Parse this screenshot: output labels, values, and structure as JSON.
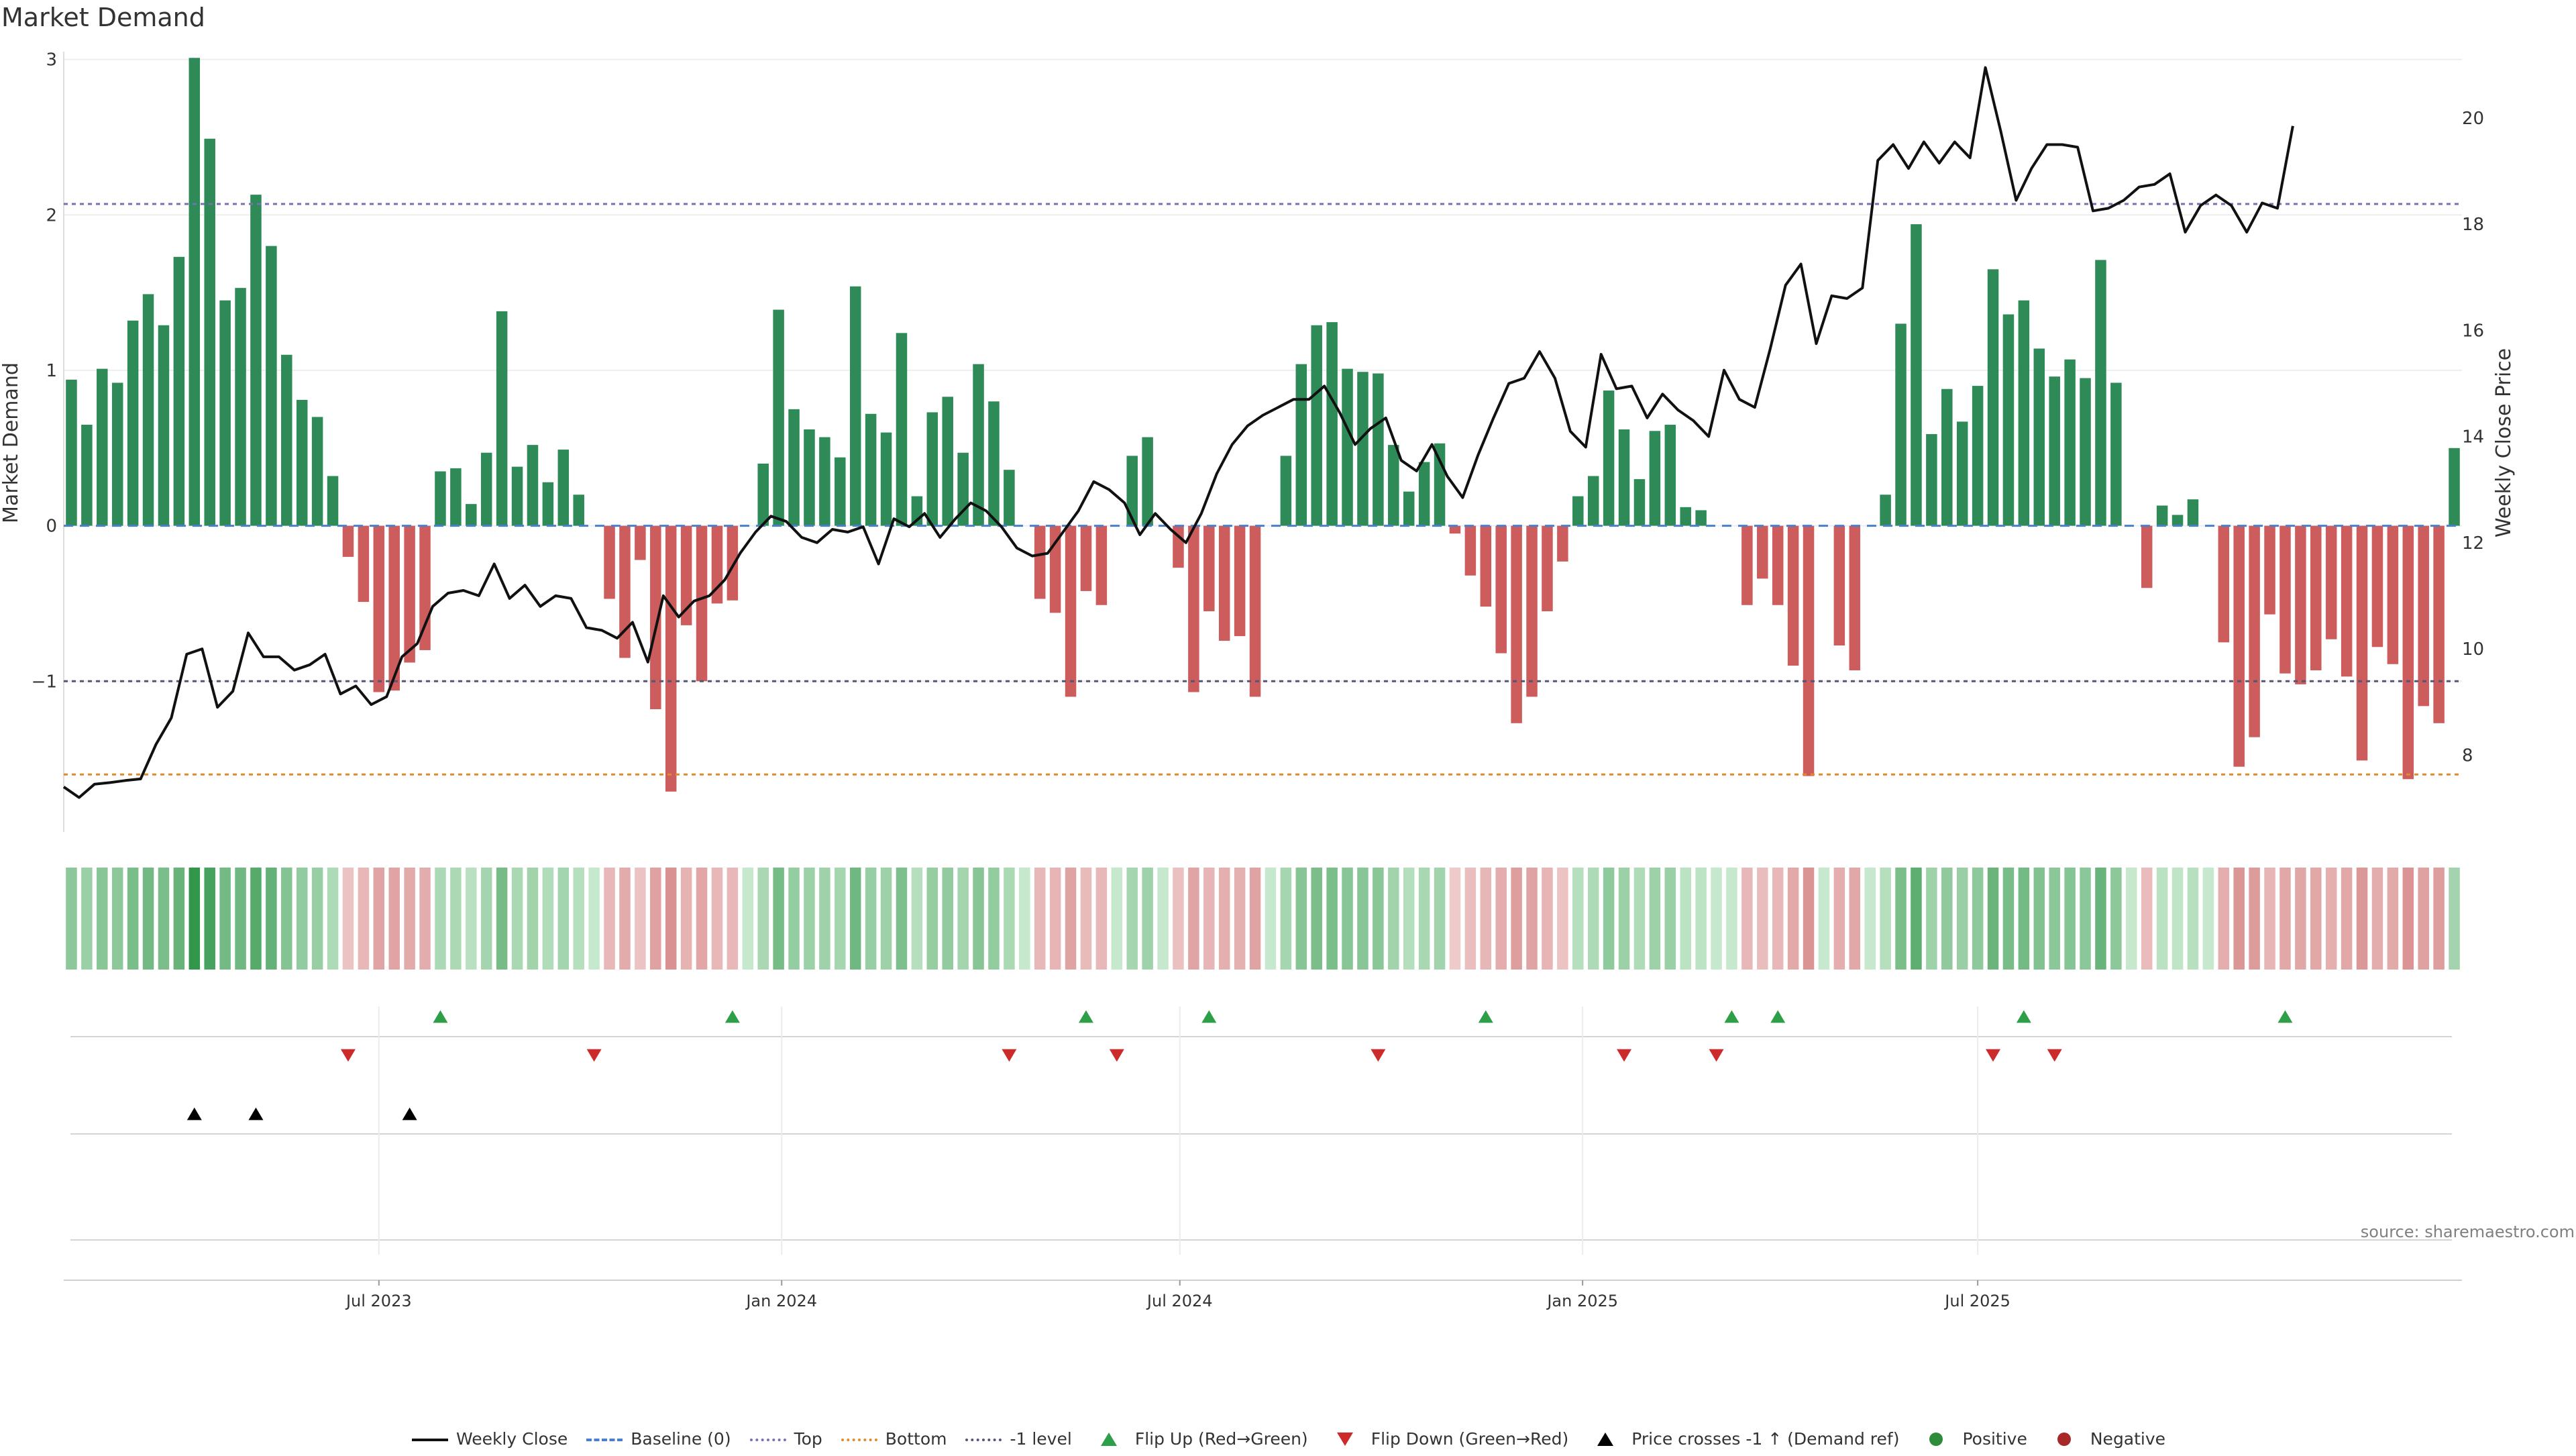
{
  "chart_data": {
    "type": "bar",
    "title": "Market Demand",
    "source": "source: sharemaestro.com",
    "ylabel": "Market Demand",
    "y2label": "Weekly Close Price",
    "ylim": [
      -1.97,
      3.05
    ],
    "y2lim": [
      6.55,
      21.25
    ],
    "yticks": [
      {
        "v": 3,
        "label": "3"
      },
      {
        "v": 2,
        "label": "2"
      },
      {
        "v": 1,
        "label": "1"
      },
      {
        "v": 0,
        "label": "0"
      },
      {
        "v": -1,
        "label": "−1"
      }
    ],
    "y2ticks": [
      {
        "v": 20,
        "label": "20"
      },
      {
        "v": 18,
        "label": "18"
      },
      {
        "v": 16,
        "label": "16"
      },
      {
        "v": 14,
        "label": "14"
      },
      {
        "v": 12,
        "label": "12"
      },
      {
        "v": 10,
        "label": "10"
      },
      {
        "v": 8,
        "label": "8"
      }
    ],
    "date_range_weeks": 145,
    "xticks": [
      {
        "week": 20.5,
        "label": "Jul 2023"
      },
      {
        "week": 46.7,
        "label": "Jan 2024"
      },
      {
        "week": 72.6,
        "label": "Jul 2024"
      },
      {
        "week": 98.8,
        "label": "Jan 2025"
      },
      {
        "week": 124.5,
        "label": "Jul 2025"
      }
    ],
    "levels": {
      "top": 2.07,
      "bottom": -1.6,
      "minus_one": -1.0
    },
    "series": [
      {
        "name": "Market Demand",
        "values": [
          0.94,
          0.65,
          1.01,
          0.92,
          1.32,
          1.49,
          1.29,
          1.73,
          3.01,
          2.49,
          1.45,
          1.53,
          2.13,
          1.8,
          1.1,
          0.81,
          0.7,
          0.32,
          -0.2,
          -0.49,
          -1.07,
          -1.06,
          -0.88,
          -0.8,
          0.35,
          0.37,
          0.14,
          0.47,
          1.38,
          0.38,
          0.52,
          0.28,
          0.49,
          0.2,
          0,
          -0.47,
          -0.85,
          -0.22,
          -1.18,
          -1.71,
          -0.64,
          -1.0,
          -0.5,
          -0.48,
          0,
          0.4,
          1.39,
          0.75,
          0.62,
          0.57,
          0.44,
          1.54,
          0.72,
          0.6,
          1.24,
          0.19,
          0.73,
          0.83,
          0.47,
          1.04,
          0.8,
          0.36,
          0,
          -0.47,
          -0.56,
          -1.1,
          -0.42,
          -0.51,
          0,
          0.45,
          0.57,
          0,
          -0.27,
          -1.07,
          -0.55,
          -0.74,
          -0.71,
          -1.1,
          0,
          0.45,
          1.04,
          1.29,
          1.31,
          1.01,
          0.99,
          0.98,
          0.52,
          0.22,
          0.41,
          0.53,
          -0.05,
          -0.32,
          -0.52,
          -0.82,
          -1.27,
          -1.1,
          -0.55,
          -0.23,
          0.19,
          0.32,
          0.87,
          0.62,
          0.3,
          0.61,
          0.65,
          0.12,
          0.1,
          0,
          0,
          -0.51,
          -0.34,
          -0.51,
          -0.9,
          -1.61,
          0,
          -0.77,
          -0.93,
          0,
          0.2,
          1.3,
          1.94,
          0.59,
          0.88,
          0.67,
          0.9,
          1.65,
          1.36,
          1.45,
          1.14,
          0.96,
          1.07,
          0.95,
          1.71,
          0.92,
          0,
          -0.4,
          0.13,
          0.07,
          0.17,
          0,
          -0.75,
          -1.55,
          -1.36,
          -0.57,
          -0.95,
          -1.02,
          -0.93,
          -0.73,
          -0.97,
          -1.51,
          -0.78,
          -0.89,
          -1.63,
          -1.16,
          -1.27,
          0.5
        ]
      },
      {
        "name": "Weekly Close",
        "values": [
          7.4,
          7.2,
          7.45,
          7.48,
          7.52,
          7.55,
          8.2,
          8.7,
          9.9,
          10.0,
          8.9,
          9.2,
          10.3,
          9.85,
          9.85,
          9.6,
          9.7,
          9.9,
          9.15,
          9.3,
          8.95,
          9.1,
          9.85,
          10.1,
          10.8,
          11.05,
          11.1,
          11.0,
          11.6,
          10.95,
          11.2,
          10.8,
          11.0,
          10.95,
          10.4,
          10.35,
          10.2,
          10.5,
          9.75,
          11.0,
          10.6,
          10.9,
          11.0,
          11.3,
          11.8,
          12.2,
          12.5,
          12.4,
          12.1,
          12.0,
          12.25,
          12.2,
          12.3,
          11.6,
          12.45,
          12.3,
          12.55,
          12.1,
          12.45,
          12.75,
          12.6,
          12.3,
          11.9,
          11.75,
          11.8,
          12.2,
          12.6,
          13.15,
          13.0,
          12.75,
          12.15,
          12.55,
          12.25,
          12.0,
          12.55,
          13.3,
          13.85,
          14.2,
          14.4,
          14.55,
          14.7,
          14.7,
          14.95,
          14.45,
          13.85,
          14.15,
          14.35,
          13.55,
          13.35,
          13.85,
          13.25,
          12.85,
          13.65,
          14.35,
          15.0,
          15.1,
          15.6,
          15.1,
          14.1,
          13.8,
          15.55,
          14.9,
          14.95,
          14.35,
          14.8,
          14.5,
          14.3,
          14.0,
          15.25,
          14.7,
          14.55,
          15.65,
          16.85,
          17.25,
          15.75,
          16.65,
          16.6,
          16.8,
          19.2,
          19.5,
          19.05,
          19.55,
          19.15,
          19.55,
          19.25,
          20.95,
          19.75,
          18.45,
          19.05,
          19.5,
          19.5,
          19.45,
          18.25,
          18.3,
          18.45,
          18.7,
          18.75,
          18.95,
          17.85,
          18.35,
          18.55,
          18.35,
          17.85,
          18.4,
          18.3,
          19.85
        ],
        "price_offset": -0.5
      }
    ],
    "flip_up_weeks": [
      24,
      43,
      66,
      74,
      92,
      108,
      111,
      127,
      144
    ],
    "flip_down_weeks": [
      18,
      34,
      61,
      68,
      85,
      101,
      107,
      125,
      129
    ],
    "price_cross_weeks": [
      8,
      12,
      22
    ],
    "legend": [
      {
        "label": "Weekly Close",
        "color": "#111111",
        "style": "solid"
      },
      {
        "label": "Baseline (0)",
        "color": "#4a7fcf",
        "style": "dashed"
      },
      {
        "label": "Top",
        "color": "#7472b0",
        "style": "dotted"
      },
      {
        "label": "Bottom",
        "color": "#e08a2b",
        "style": "dotted"
      },
      {
        "label": "-1 level",
        "color": "#555577",
        "style": "dotted"
      },
      {
        "label": "Flip Up (Red→Green)",
        "color": "#2e9e48",
        "style": "tri-up"
      },
      {
        "label": "Flip Down (Green→Red)",
        "color": "#cc2b2b",
        "style": "tri-down"
      },
      {
        "label": "Price crosses -1 ↑ (Demand ref)",
        "color": "#000000",
        "style": "tri-up"
      },
      {
        "label": "Positive",
        "color": "#2e8b3a",
        "style": "dot"
      },
      {
        "label": "Negative",
        "color": "#a82828",
        "style": "dot"
      }
    ],
    "colors": {
      "positive": "#2e8b57",
      "negative": "#cd5c5c",
      "price": "#111111",
      "grid": "#eeeeee"
    }
  }
}
